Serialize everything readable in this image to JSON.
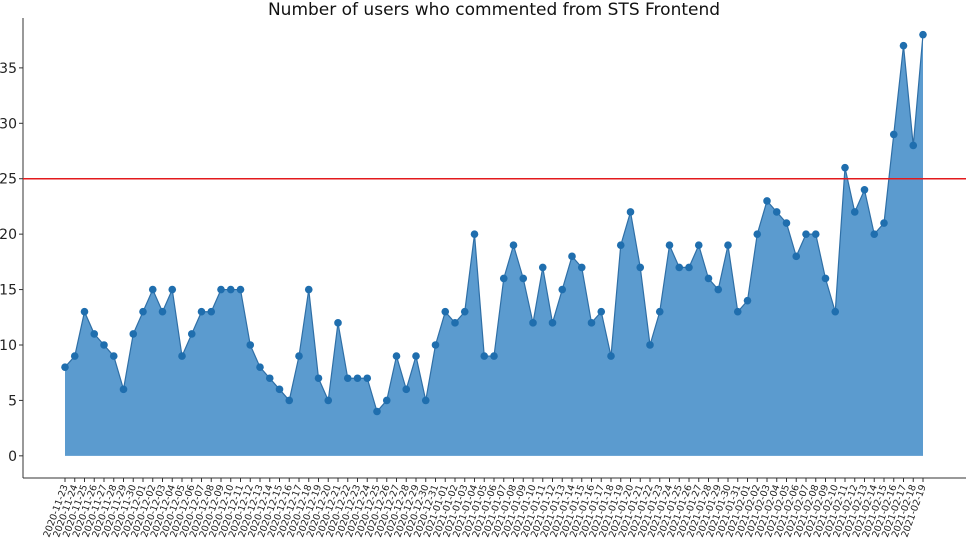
{
  "chart_data": {
    "type": "area",
    "title": "Number of users who commented from STS Frontend",
    "xlabel": "",
    "ylabel": "",
    "ylim": [
      -2,
      39.5
    ],
    "y_ticks": [
      0,
      5,
      10,
      15,
      20,
      25,
      30,
      35
    ],
    "threshold": 25,
    "grid": false,
    "colors": {
      "fill": "#5b9bcf",
      "line": "#2f6fa6",
      "marker": "#1f6eae",
      "threshold": "#e31a1c"
    },
    "x": [
      "2020-11-23",
      "2020-11-24",
      "2020-11-25",
      "2020-11-26",
      "2020-11-27",
      "2020-11-28",
      "2020-11-29",
      "2020-11-30",
      "2020-12-01",
      "2020-12-02",
      "2020-12-03",
      "2020-12-04",
      "2020-12-05",
      "2020-12-06",
      "2020-12-07",
      "2020-12-08",
      "2020-12-09",
      "2020-12-10",
      "2020-12-11",
      "2020-12-12",
      "2020-12-13",
      "2020-12-14",
      "2020-12-15",
      "2020-12-16",
      "2020-12-17",
      "2020-12-18",
      "2020-12-19",
      "2020-12-20",
      "2020-12-21",
      "2020-12-22",
      "2020-12-23",
      "2020-12-24",
      "2020-12-25",
      "2020-12-26",
      "2020-12-27",
      "2020-12-28",
      "2020-12-29",
      "2020-12-30",
      "2020-12-31",
      "2021-01-01",
      "2021-01-02",
      "2021-01-03",
      "2021-01-04",
      "2021-01-05",
      "2021-01-06",
      "2021-01-07",
      "2021-01-08",
      "2021-01-09",
      "2021-01-10",
      "2021-01-11",
      "2021-01-12",
      "2021-01-13",
      "2021-01-14",
      "2021-01-15",
      "2021-01-16",
      "2021-01-17",
      "2021-01-18",
      "2021-01-19",
      "2021-01-20",
      "2021-01-21",
      "2021-01-22",
      "2021-01-23",
      "2021-01-24",
      "2021-01-25",
      "2021-01-26",
      "2021-01-27",
      "2021-01-28",
      "2021-01-29",
      "2021-01-30",
      "2021-01-31",
      "2021-02-01",
      "2021-02-02",
      "2021-02-03",
      "2021-02-04",
      "2021-02-05",
      "2021-02-06",
      "2021-02-07",
      "2021-02-08",
      "2021-02-09",
      "2021-02-10",
      "2021-02-11",
      "2021-02-12",
      "2021-02-13",
      "2021-02-14",
      "2021-02-15",
      "2021-02-16",
      "2021-02-17",
      "2021-02-18",
      "2021-02-19"
    ],
    "values": [
      8,
      9,
      13,
      11,
      10,
      9,
      6,
      11,
      13,
      15,
      13,
      15,
      9,
      11,
      13,
      13,
      15,
      15,
      15,
      10,
      8,
      7,
      6,
      5,
      9,
      15,
      7,
      5,
      12,
      7,
      7,
      7,
      4,
      5,
      9,
      6,
      9,
      5,
      10,
      13,
      12,
      13,
      20,
      9,
      9,
      16,
      19,
      16,
      12,
      17,
      12,
      15,
      18,
      17,
      12,
      13,
      9,
      19,
      22,
      17,
      10,
      13,
      19,
      17,
      17,
      19,
      16,
      15,
      19,
      13,
      14,
      20,
      23,
      22,
      21,
      18,
      20,
      20,
      16,
      13,
      26,
      22,
      24,
      20,
      21,
      29,
      37,
      28,
      38
    ]
  }
}
